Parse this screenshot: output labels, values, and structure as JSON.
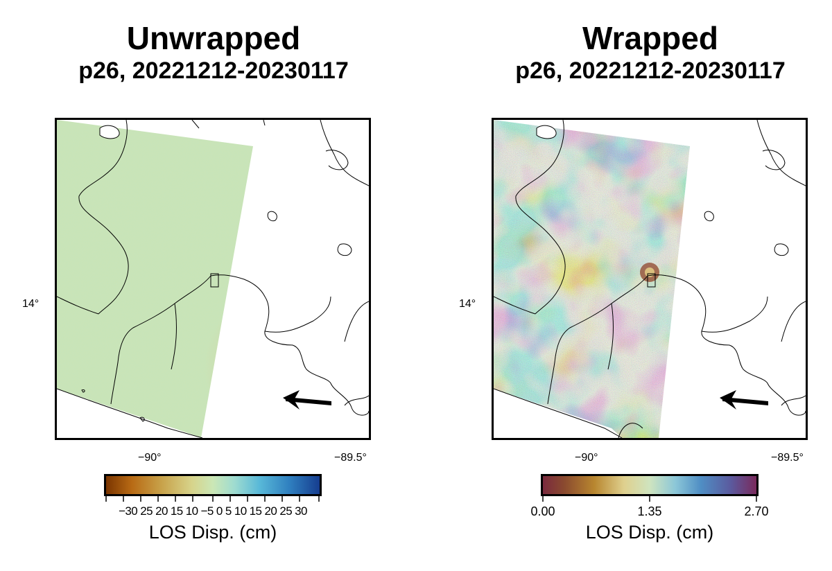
{
  "panels": [
    {
      "title": "Unwrapped",
      "subtitle": "p26, 20221212-20230117",
      "lat_label": "14°",
      "lon_labels": [
        "−90°",
        "−89.5°"
      ],
      "colorbar": {
        "ticks": [
          "−30",
          "25",
          "20",
          "15",
          "10",
          "−5",
          "0",
          "5",
          "10",
          "15",
          "20",
          "25",
          "30"
        ],
        "tick_text": "−30 25 20 15 10 −5 0 5 10 15 20 25 30",
        "label": "LOS Disp. (cm)"
      }
    },
    {
      "title": "Wrapped",
      "subtitle": "p26, 20221212-20230117",
      "lat_label": "14°",
      "lon_labels": [
        "−90°",
        "−89.5°"
      ],
      "colorbar": {
        "ticks": [
          "0.00",
          "1.35",
          "2.70"
        ],
        "label": "LOS Disp. (cm)"
      }
    }
  ],
  "colors": {
    "unwrapped_field": "#c8e3b3",
    "frame": "#000000",
    "coastline": "#000000"
  }
}
